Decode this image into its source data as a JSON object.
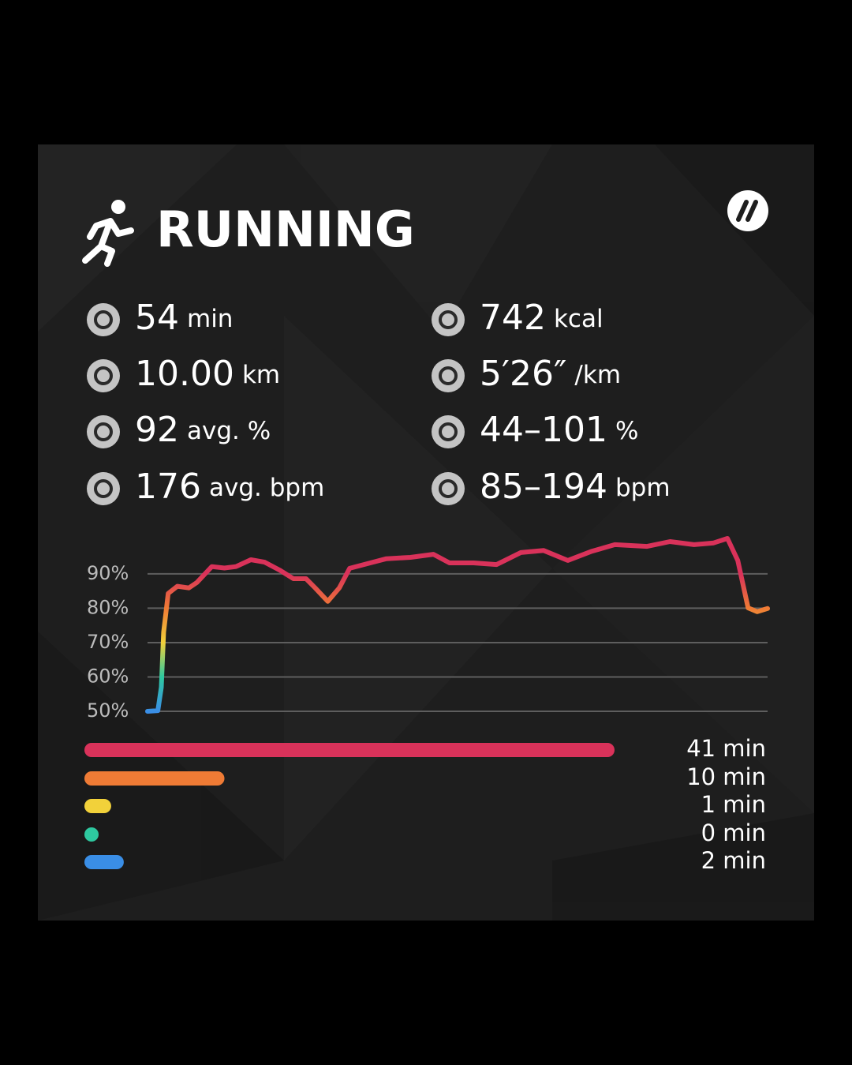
{
  "header": {
    "title": "RUNNING"
  },
  "stats": [
    {
      "value": "54",
      "unit": "min"
    },
    {
      "value": "10.00",
      "unit": "km"
    },
    {
      "value": "92",
      "unit": "avg. %"
    },
    {
      "value": "176",
      "unit": "avg. bpm"
    },
    {
      "value": "742",
      "unit": "kcal"
    },
    {
      "value": "5′26″",
      "unit": "/km"
    },
    {
      "value": "44–101",
      "unit": "%"
    },
    {
      "value": "85–194",
      "unit": "bpm"
    }
  ],
  "chart_data": [
    {
      "type": "line",
      "x": [
        0,
        0.9,
        1.2,
        1.4,
        1.8,
        2.6,
        3.6,
        4.3,
        5.6,
        6.7,
        7.7,
        9.0,
        10.2,
        11.5,
        12.7,
        13.8,
        14.6,
        15.7,
        16.7,
        17.6,
        19.4,
        20.8,
        22.9,
        24.9,
        26.3,
        28.4,
        30.4,
        32.5,
        34.5,
        36.6,
        38.7,
        40.7,
        43.5,
        45.5,
        47.6,
        49.3,
        50.5,
        51.4,
        52.3,
        53.1,
        54
      ],
      "values": [
        50,
        50.2,
        57,
        73,
        84.3,
        86.4,
        85.9,
        87.5,
        92.1,
        91.7,
        92.1,
        94.1,
        93.4,
        91.1,
        88.6,
        88.6,
        85.9,
        82,
        85.9,
        91.6,
        93.2,
        94.4,
        94.8,
        95.7,
        93.2,
        93.2,
        92.7,
        96.2,
        96.8,
        93.9,
        96.6,
        98.5,
        98,
        99.4,
        98.5,
        99,
        100.3,
        93.9,
        80.1,
        79,
        79.9
      ],
      "xlim": [
        0,
        54
      ],
      "ylim": [
        50,
        101
      ],
      "yticks": [
        {
          "value": 50,
          "label": "50%"
        },
        {
          "value": 60,
          "label": "60%"
        },
        {
          "value": 70,
          "label": "70%"
        },
        {
          "value": 80,
          "label": "80%"
        },
        {
          "value": 90,
          "label": "90%"
        }
      ],
      "line_colors": [
        "#3a8ee6",
        "#2ec9a0",
        "#f2d13a",
        "#ef7b35",
        "#d9325a"
      ],
      "grid": true
    },
    {
      "type": "bar",
      "orientation": "horizontal",
      "values": [
        41,
        10,
        1,
        0,
        2
      ],
      "value_labels": [
        "41 min",
        "10 min",
        "1 min",
        "0 min",
        "2 min"
      ],
      "colors": [
        "#d9325a",
        "#ef7b35",
        "#f2d13a",
        "#2ec9a0",
        "#3a8ee6"
      ],
      "xlim": [
        0,
        41
      ]
    }
  ]
}
